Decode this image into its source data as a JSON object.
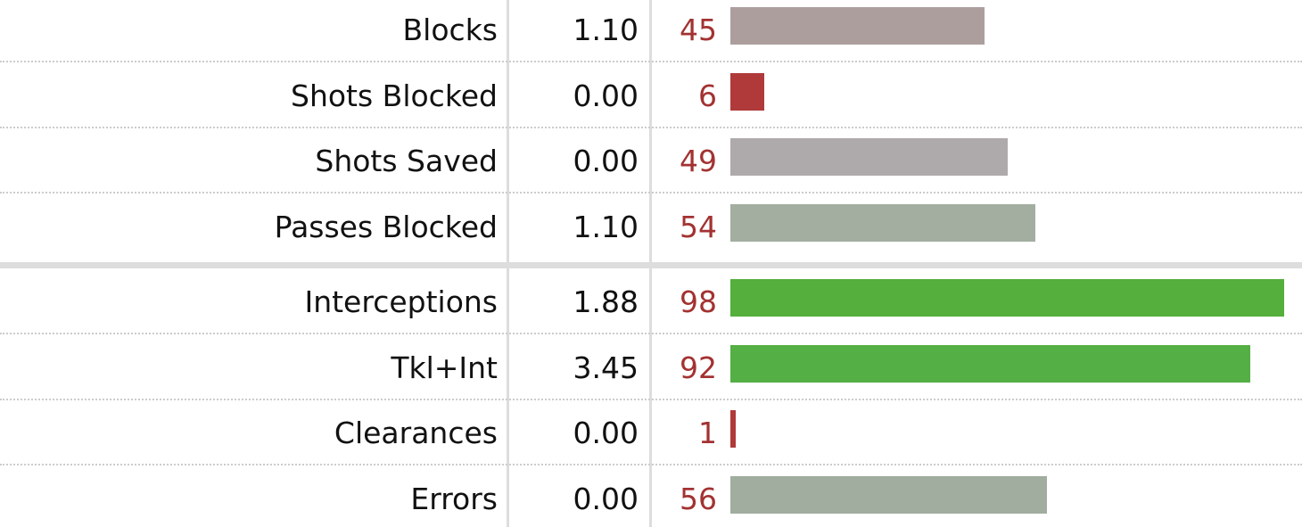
{
  "table": {
    "groups": [
      {
        "rows": [
          {
            "stat": "Blocks",
            "per90": "1.10",
            "percentile": 45,
            "color": "#ad9e9e"
          },
          {
            "stat": "Shots Blocked",
            "per90": "0.00",
            "percentile": 6,
            "color": "#b03a3a"
          },
          {
            "stat": "Shots Saved",
            "per90": "0.00",
            "percentile": 49,
            "color": "#aeaaab"
          },
          {
            "stat": "Passes Blocked",
            "per90": "1.10",
            "percentile": 54,
            "color": "#a3aea1"
          }
        ]
      },
      {
        "rows": [
          {
            "stat": "Interceptions",
            "per90": "1.88",
            "percentile": 98,
            "color": "#54af3c"
          },
          {
            "stat": "Tkl+Int",
            "per90": "3.45",
            "percentile": 92,
            "color": "#54af44"
          },
          {
            "stat": "Clearances",
            "per90": "0.00",
            "percentile": 1,
            "color": "#b03a3a"
          },
          {
            "stat": "Errors",
            "per90": "0.00",
            "percentile": 56,
            "color": "#a0ad9f"
          }
        ]
      }
    ]
  }
}
